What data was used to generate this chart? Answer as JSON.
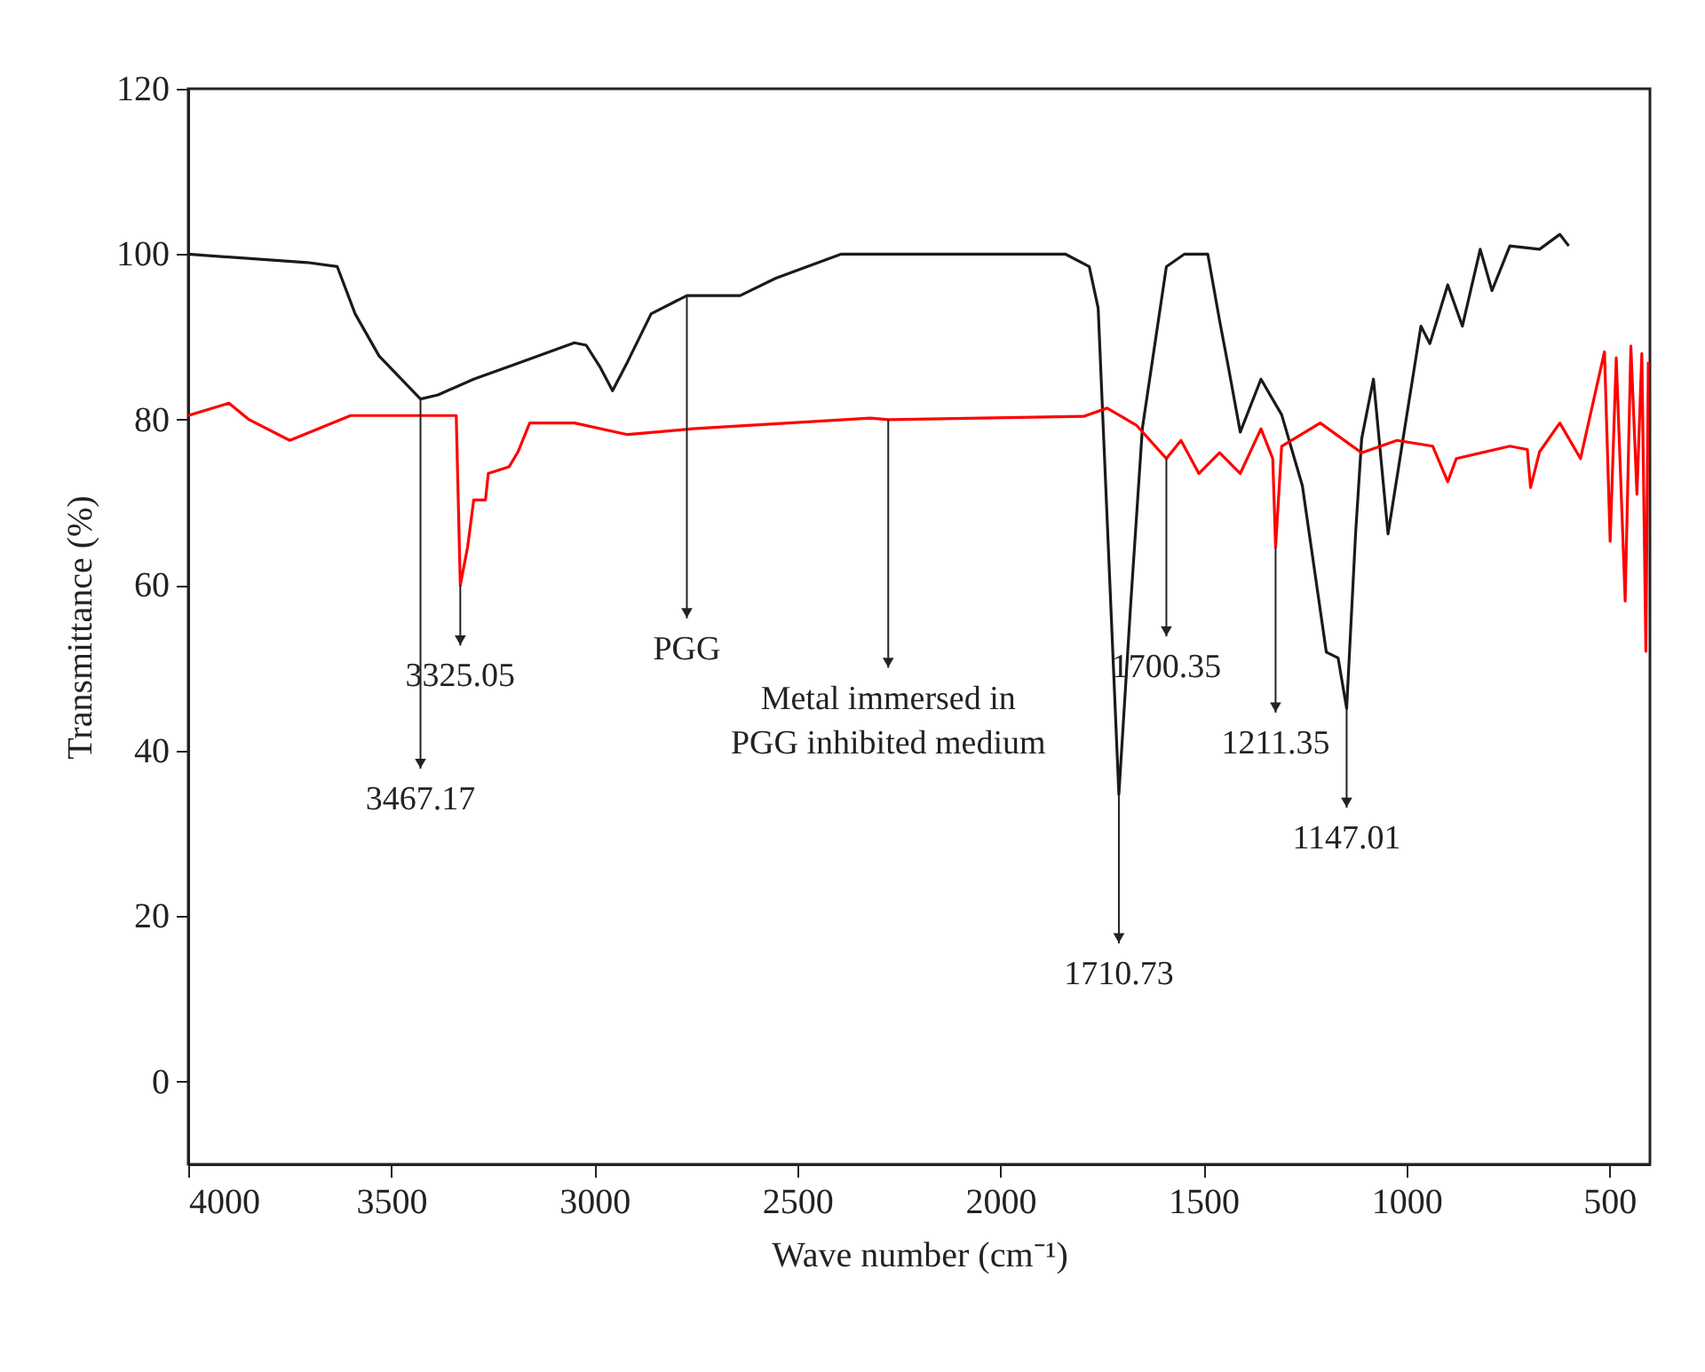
{
  "chart_data": {
    "type": "line",
    "xlabel": "Wave number (cm⁻¹)",
    "ylabel": "Transmittance (%)",
    "xlim": [
      4000,
      400
    ],
    "ylim": [
      -10,
      120
    ],
    "xticks": [
      4000,
      3500,
      3000,
      2500,
      2000,
      1500,
      1000,
      500
    ],
    "yticks": [
      0,
      20,
      40,
      60,
      80,
      100,
      120
    ],
    "grid": false,
    "series": [
      {
        "color": "#1a1a1a",
        "x": [
          4000,
          3707,
          3633,
          3589,
          3530,
          3428,
          3385,
          3297,
          3195,
          3049,
          3020,
          2985,
          2955,
          2918,
          2860,
          2772,
          2641,
          2553,
          2393,
          2247,
          1839,
          1781,
          1759,
          1708,
          1679,
          1650,
          1591,
          1547,
          1489,
          1460,
          1438,
          1409,
          1358,
          1307,
          1256,
          1197,
          1168,
          1147,
          1125,
          1110,
          1081,
          1045,
          1008,
          964,
          942,
          898,
          862,
          818,
          789,
          745,
          672,
          622,
          600
        ],
        "values": [
          100,
          99,
          98.5,
          92.8,
          87.7,
          82.5,
          83,
          84.9,
          86.7,
          89.3,
          89,
          86.3,
          83.5,
          87,
          92.8,
          95,
          95,
          97.1,
          100,
          100,
          100,
          98.5,
          93.5,
          34.7,
          57.6,
          79,
          98.5,
          100,
          100,
          92,
          86.3,
          78.5,
          84.9,
          80.6,
          72,
          51.9,
          51.2,
          45.1,
          66.2,
          77.7,
          84.9,
          66.2,
          77.7,
          91.3,
          89.2,
          96.3,
          91.3,
          100.6,
          95.6,
          101,
          100.6,
          102.4,
          101
        ]
      },
      {
        "color": "#ff0000",
        "x": [
          4000,
          3900,
          3850,
          3750,
          3600,
          3480,
          3340,
          3330,
          3312,
          3297,
          3268,
          3261,
          3210,
          3188,
          3159,
          3049,
          2918,
          2758,
          2320,
          2276,
          1795,
          1737,
          1664,
          1591,
          1555,
          1511,
          1460,
          1409,
          1358,
          1329,
          1322,
          1307,
          1212,
          1110,
          1023,
          935,
          898,
          877,
          745,
          702,
          694,
          672,
          622,
          571,
          512,
          498,
          483,
          461,
          447,
          432,
          420,
          410,
          404
        ],
        "values": [
          80.5,
          82,
          80,
          77.5,
          80.5,
          80.5,
          80.5,
          60,
          64.6,
          70.3,
          70.3,
          73.5,
          74.3,
          76.1,
          79.6,
          79.6,
          78.2,
          78.9,
          80.2,
          80,
          80.4,
          81.4,
          79.3,
          75.3,
          77.5,
          73.5,
          76,
          73.5,
          78.9,
          75.3,
          64.6,
          76.8,
          79.6,
          76,
          77.5,
          76.8,
          72.5,
          75.3,
          76.8,
          76.4,
          71.8,
          76.1,
          79.6,
          75.3,
          88.2,
          65.3,
          87.5,
          58.1,
          88.9,
          71,
          88,
          52,
          87
        ]
      }
    ],
    "annotations": [
      {
        "text": "3467.17",
        "x": 3428,
        "y": 82.5
      },
      {
        "text": "3325.05",
        "x": 3330,
        "y": 60
      },
      {
        "text": "PGG",
        "x": 2772,
        "y": 95
      },
      {
        "text": "Metal immersed in\nPGG inhibited medium",
        "x": 2276,
        "y": 80
      },
      {
        "text": "1700.35",
        "x": 1591,
        "y": 75.3
      },
      {
        "text": "1211.35",
        "x": 1322,
        "y": 64.6
      },
      {
        "text": "1147.01",
        "x": 1147,
        "y": 45.1
      },
      {
        "text": "1710.73",
        "x": 1708,
        "y": 34.7
      }
    ]
  }
}
